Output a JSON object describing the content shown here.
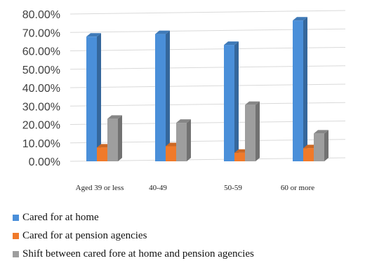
{
  "chart_data": {
    "type": "bar",
    "categories": [
      "Aged 39 or less",
      "40-49",
      "50-59",
      "60 or more"
    ],
    "series": [
      {
        "name": "Cared for at home",
        "color": "#4a8fd9",
        "values": [
          67.7,
          69.1,
          63.2,
          76.5
        ]
      },
      {
        "name": "Cared for at pension agencies",
        "color": "#f07a2a",
        "values": [
          7.5,
          8.2,
          4.6,
          7.1
        ]
      },
      {
        "name": "Shift between cared fore at home and pension agencies",
        "color": "#9e9e9e",
        "values": [
          23.1,
          20.9,
          30.6,
          15.1
        ]
      }
    ],
    "y_ticks": [
      "0.00%",
      "10.00%",
      "20.00%",
      "30.00%",
      "40.00%",
      "50.00%",
      "60.00%",
      "70.00%",
      "80.00%"
    ],
    "ylim": [
      0,
      80
    ],
    "grid": true,
    "legend_position": "bottom",
    "title": "",
    "xlabel": "",
    "ylabel": ""
  }
}
